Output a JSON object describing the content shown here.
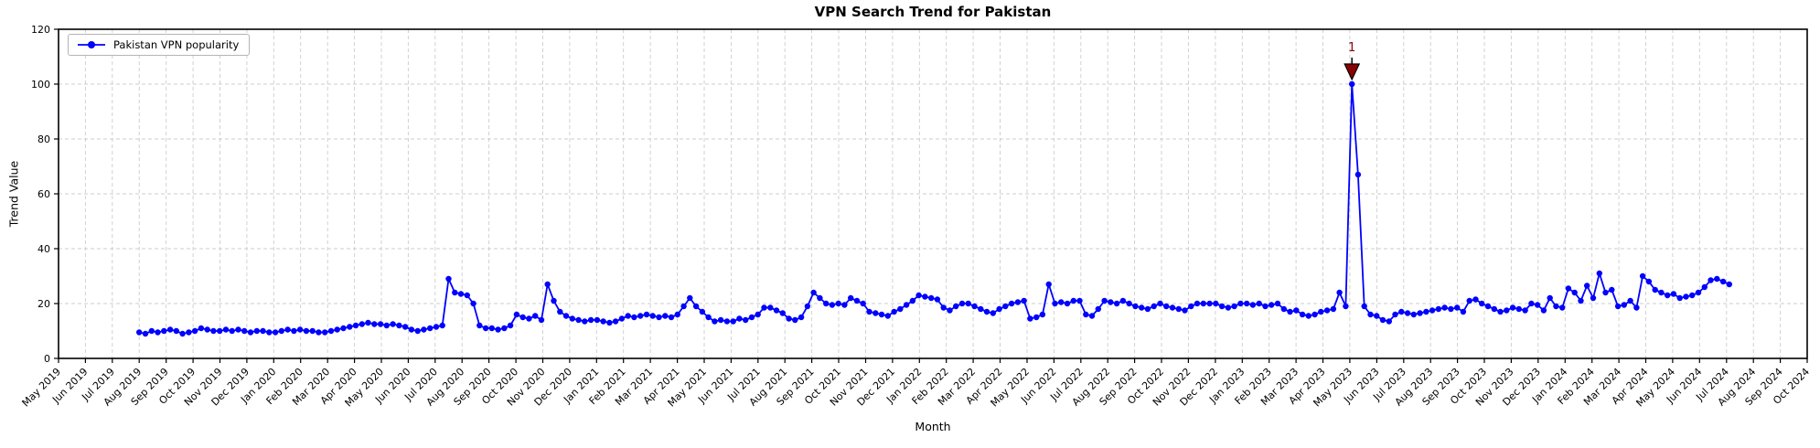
{
  "chart_data": {
    "type": "line",
    "title": "VPN Search Trend for Pakistan",
    "xlabel": "Month",
    "ylabel": "Trend Value",
    "ylim": [
      0,
      120
    ],
    "yticks": [
      0,
      20,
      40,
      60,
      80,
      100,
      120
    ],
    "grid": true,
    "grid_style": "dashed",
    "x_tick_labels": [
      "May 2019",
      "Jun 2019",
      "Jul 2019",
      "Aug 2019",
      "Sep 2019",
      "Oct 2019",
      "Nov 2019",
      "Dec 2019",
      "Jan 2020",
      "Feb 2020",
      "Mar 2020",
      "Apr 2020",
      "May 2020",
      "Jun 2020",
      "Jul 2020",
      "Aug 2020",
      "Sep 2020",
      "Oct 2020",
      "Nov 2020",
      "Dec 2020",
      "Jan 2021",
      "Feb 2021",
      "Mar 2021",
      "Apr 2021",
      "May 2021",
      "Jun 2021",
      "Jul 2021",
      "Aug 2021",
      "Sep 2021",
      "Oct 2021",
      "Nov 2021",
      "Dec 2021",
      "Jan 2022",
      "Feb 2022",
      "Mar 2022",
      "Apr 2022",
      "May 2022",
      "Jun 2022",
      "Jul 2022",
      "Aug 2022",
      "Sep 2022",
      "Oct 2022",
      "Nov 2022",
      "Dec 2022",
      "Jan 2023",
      "Feb 2023",
      "Mar 2023",
      "Apr 2023",
      "May 2023",
      "Jun 2023",
      "Jul 2023",
      "Aug 2023",
      "Sep 2023",
      "Oct 2023",
      "Nov 2023",
      "Dec 2023",
      "Jan 2024",
      "Feb 2024",
      "Mar 2024",
      "Apr 2024",
      "May 2024",
      "Jun 2024",
      "Jul 2024",
      "Aug 2024",
      "Sep 2024",
      "Oct 2024"
    ],
    "legend": {
      "position": "upper left",
      "entries": [
        {
          "label": "Pakistan VPN popularity",
          "color": "#0000ff"
        }
      ]
    },
    "series": [
      {
        "name": "Pakistan VPN popularity",
        "color": "#0000ff",
        "marker": "circle",
        "interval": "weekly",
        "start_month_label": "Aug 2019",
        "start_month_index": 3,
        "values": [
          9.5,
          9,
          10,
          9.5,
          10,
          10.5,
          10,
          9,
          9.5,
          10,
          11,
          10.5,
          10,
          10,
          10.5,
          10,
          10.5,
          10,
          9.5,
          10,
          10,
          9.5,
          9.5,
          10,
          10.5,
          10,
          10.5,
          10,
          10,
          9.5,
          9.5,
          10,
          10.5,
          11,
          11.5,
          12,
          12.5,
          13,
          12.5,
          12.5,
          12,
          12.5,
          12,
          11.5,
          10.5,
          10,
          10.5,
          11,
          11.5,
          12,
          29,
          24,
          23.5,
          23,
          20,
          12,
          11,
          11,
          10.5,
          11,
          12,
          16,
          15,
          14.5,
          15.5,
          14,
          27,
          21,
          17,
          15.5,
          14.5,
          14,
          13.5,
          14,
          14,
          13.5,
          13,
          13.5,
          14.5,
          15.5,
          15,
          15.5,
          16,
          15.5,
          15,
          15.5,
          15,
          16,
          19,
          22,
          19,
          17,
          15,
          13.5,
          14,
          13.5,
          13.5,
          14.5,
          14,
          15,
          16,
          18.5,
          18.5,
          17.5,
          16.5,
          14.5,
          14,
          15,
          19,
          24,
          22,
          20,
          19.5,
          20,
          19.5,
          22,
          21,
          20,
          17,
          16.5,
          16,
          15.5,
          17,
          18,
          19.5,
          21,
          23,
          22.5,
          22,
          21.5,
          18.5,
          17.5,
          19,
          20,
          20,
          19,
          18,
          17,
          16.5,
          18,
          19,
          20,
          20.5,
          21,
          14.5,
          15,
          16,
          27,
          20,
          20.5,
          20,
          21,
          21,
          16,
          15.5,
          18,
          21,
          20.5,
          20,
          21,
          20,
          19,
          18.5,
          18,
          19,
          20,
          19,
          18.5,
          18,
          17.5,
          19,
          20,
          20,
          20,
          20,
          19,
          18.5,
          19,
          20,
          20,
          19.5,
          20,
          19,
          19.5,
          20,
          18,
          17,
          17.5,
          16,
          15.5,
          16,
          17,
          17.5,
          18,
          24,
          19,
          100,
          67,
          19,
          16,
          15.5,
          14,
          13.5,
          16,
          17,
          16.5,
          16,
          16.5,
          17,
          17.5,
          18,
          18.5,
          18,
          18.5,
          17,
          21,
          21.5,
          20,
          19,
          18,
          17,
          17.5,
          18.5,
          18,
          17.5,
          20,
          19.5,
          17.5,
          22,
          19,
          18.5,
          25.5,
          24,
          21,
          26.5,
          22,
          31,
          24,
          25,
          19,
          19.5,
          21,
          18.5,
          30,
          28,
          25,
          24,
          23,
          23.5,
          22,
          22.5,
          23,
          24,
          26,
          28.5,
          29,
          28,
          27
        ]
      }
    ],
    "annotation": {
      "label": "1",
      "marker": "triangle-down",
      "color": "#8b0000",
      "target": "max",
      "target_value": 100,
      "target_month": "May 2023"
    },
    "colors": {
      "line": "#0000ff",
      "annotation": "#8b0000",
      "grid": "#cccccc",
      "axis": "#000000",
      "background": "#ffffff"
    }
  }
}
